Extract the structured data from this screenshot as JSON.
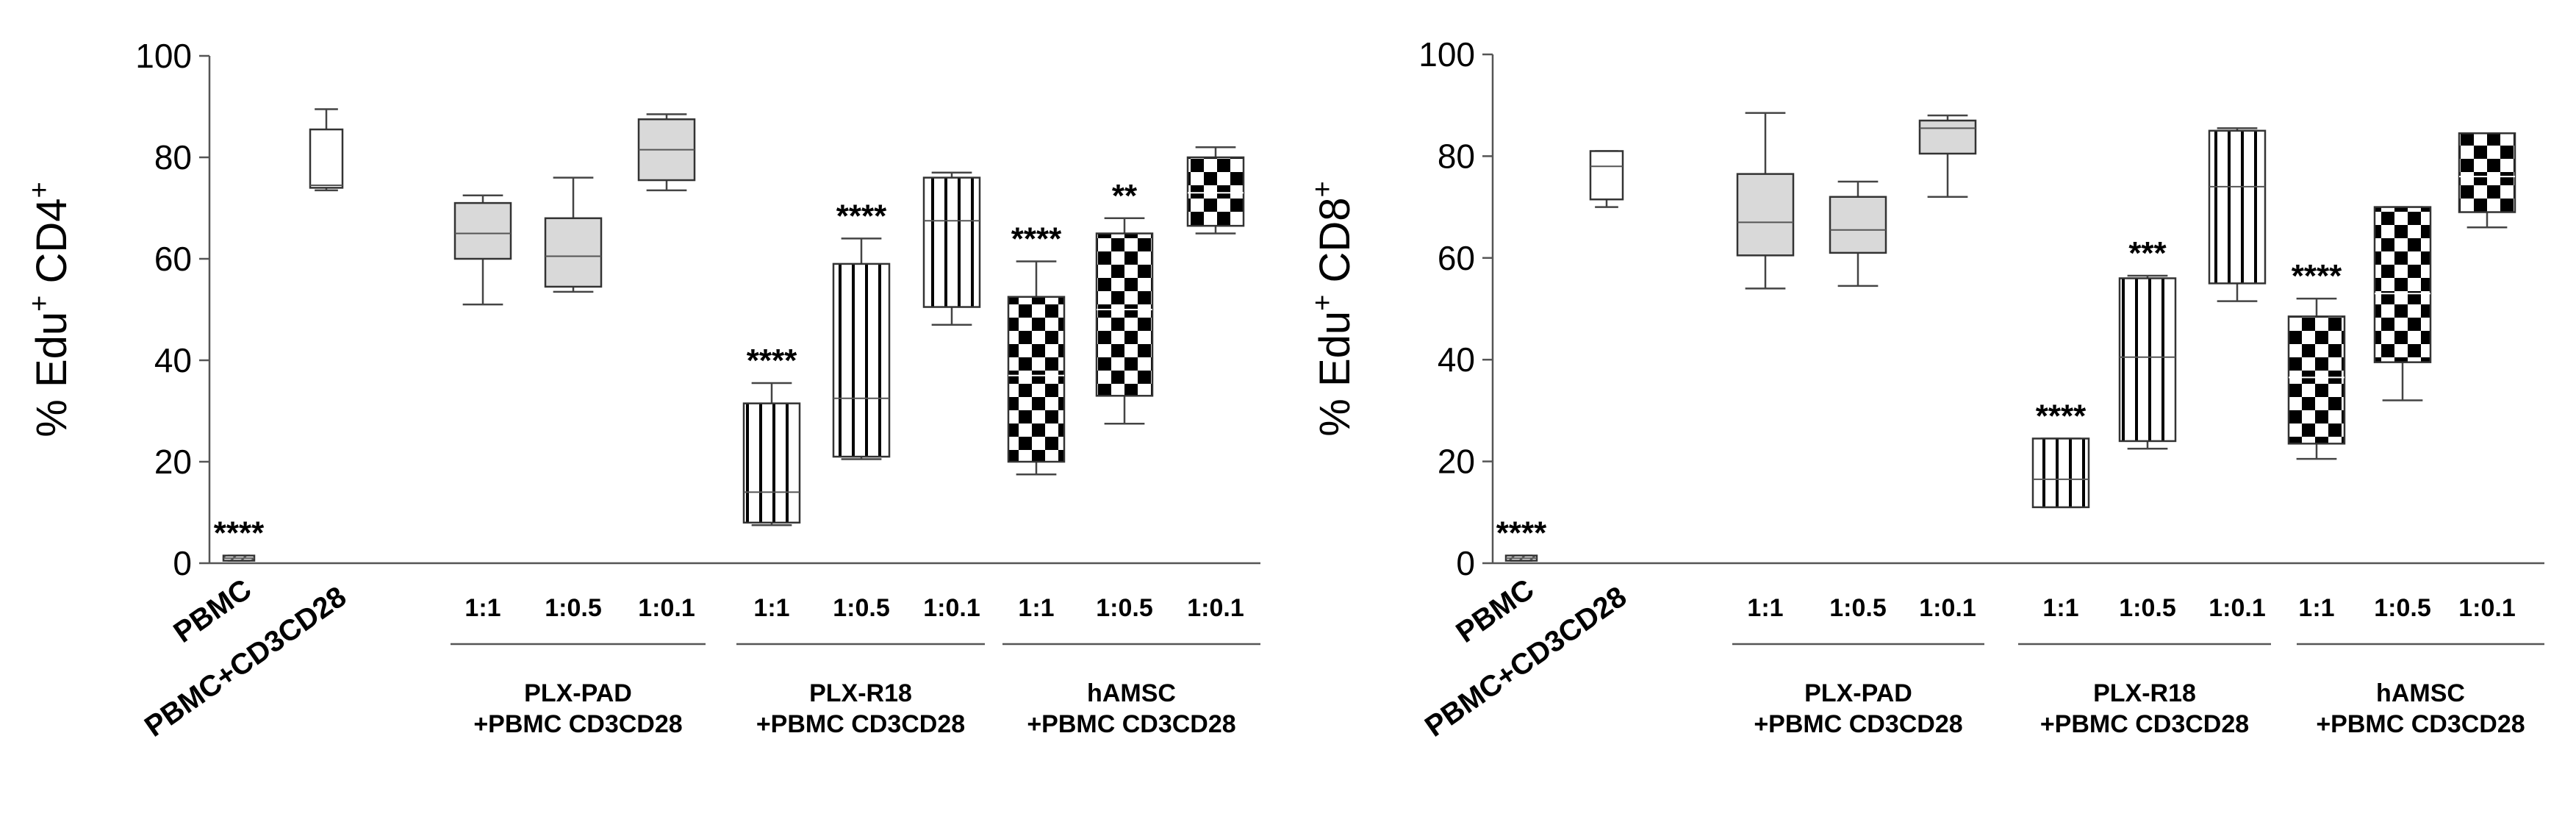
{
  "chart_data": [
    {
      "type": "box",
      "panel": "left",
      "ylabel": {
        "main": "% Edu",
        "sup1": "+",
        "cell": " CD4",
        "sup2": "+"
      },
      "ylim": [
        0,
        100
      ],
      "yticks": [
        0,
        20,
        40,
        60,
        80,
        100
      ],
      "categories": [
        "PBMC",
        "PBMC+CD3CD28",
        "1:1",
        "1:0.5",
        "1:0.1",
        "1:1",
        "1:0.5",
        "1:0.1",
        "1:1",
        "1:0.5",
        "1:0.1"
      ],
      "groups": [
        {
          "line1": "PLX-PAD",
          "line2": "+PBMC CD3CD28",
          "from": 2,
          "to": 4
        },
        {
          "line1": "PLX-R18",
          "line2": "+PBMC CD3CD28",
          "from": 5,
          "to": 7
        },
        {
          "line1": "hAMSC",
          "line2": "+PBMC CD3CD28",
          "from": 8,
          "to": 10
        }
      ],
      "boxes": [
        {
          "label": "PBMC",
          "min": 0.5,
          "q1": 0.5,
          "median": 1,
          "q3": 1.5,
          "max": 1.5,
          "style": "hatch",
          "sig": "****"
        },
        {
          "label": "PBMC+CD3CD28",
          "min": 73.5,
          "q1": 74,
          "median": 74.5,
          "q3": 85.5,
          "max": 89.5,
          "style": "white",
          "sig": ""
        },
        {
          "label": "1:1",
          "min": 51,
          "q1": 60,
          "median": 65,
          "q3": 71,
          "max": 72.5,
          "style": "gray",
          "sig": ""
        },
        {
          "label": "1:0.5",
          "min": 53.5,
          "q1": 54.5,
          "median": 60.5,
          "q3": 68,
          "max": 76,
          "style": "gray",
          "sig": ""
        },
        {
          "label": "1:0.1",
          "min": 73.5,
          "q1": 75.5,
          "median": 81.5,
          "q3": 87.5,
          "max": 88.5,
          "style": "gray",
          "sig": ""
        },
        {
          "label": "1:1",
          "min": 7.5,
          "q1": 8,
          "median": 14,
          "q3": 31.5,
          "max": 35.5,
          "style": "vstripe",
          "sig": "****"
        },
        {
          "label": "1:0.5",
          "min": 20.5,
          "q1": 21,
          "median": 32.5,
          "q3": 59,
          "max": 64,
          "style": "vstripe",
          "sig": "****"
        },
        {
          "label": "1:0.1",
          "min": 47,
          "q1": 50.5,
          "median": 67.5,
          "q3": 76,
          "max": 77,
          "style": "vstripe",
          "sig": ""
        },
        {
          "label": "1:1",
          "min": 17.5,
          "q1": 20,
          "median": 37,
          "q3": 52.5,
          "max": 59.5,
          "style": "checker",
          "sig": "****"
        },
        {
          "label": "1:0.5",
          "min": 27.5,
          "q1": 33,
          "median": 50,
          "q3": 65,
          "max": 68,
          "style": "checker",
          "sig": "**"
        },
        {
          "label": "1:0.1",
          "min": 65,
          "q1": 66.5,
          "median": 73,
          "q3": 80,
          "max": 82,
          "style": "checker",
          "sig": ""
        }
      ]
    },
    {
      "type": "box",
      "panel": "right",
      "ylabel": {
        "main": "% Edu",
        "sup1": "+",
        "cell": " CD8",
        "sup2": "+"
      },
      "ylim": [
        0,
        100
      ],
      "yticks": [
        0,
        20,
        40,
        60,
        80,
        100
      ],
      "categories": [
        "PBMC",
        "PBMC+CD3CD28",
        "1:1",
        "1:0.5",
        "1:0.1",
        "1:1",
        "1:0.5",
        "1:0.1",
        "1:1",
        "1:0.5",
        "1:0.1"
      ],
      "groups": [
        {
          "line1": "PLX-PAD",
          "line2": "+PBMC CD3CD28",
          "from": 2,
          "to": 4
        },
        {
          "line1": "PLX-R18",
          "line2": "+PBMC CD3CD28",
          "from": 5,
          "to": 7
        },
        {
          "line1": "hAMSC",
          "line2": "+PBMC CD3CD28",
          "from": 8,
          "to": 10
        }
      ],
      "boxes": [
        {
          "label": "PBMC",
          "min": 0.5,
          "q1": 0.5,
          "median": 1,
          "q3": 1.5,
          "max": 1.5,
          "style": "hatch",
          "sig": "****"
        },
        {
          "label": "PBMC+CD3CD28",
          "min": 70,
          "q1": 71.5,
          "median": 78,
          "q3": 81,
          "max": 81,
          "style": "white",
          "sig": ""
        },
        {
          "label": "1:1",
          "min": 54,
          "q1": 60.5,
          "median": 67,
          "q3": 76.5,
          "max": 88.5,
          "style": "gray",
          "sig": ""
        },
        {
          "label": "1:0.5",
          "min": 54.5,
          "q1": 61,
          "median": 65.5,
          "q3": 72,
          "max": 75,
          "style": "gray",
          "sig": ""
        },
        {
          "label": "1:0.1",
          "min": 72,
          "q1": 80.5,
          "median": 85.5,
          "q3": 87,
          "max": 88,
          "style": "gray",
          "sig": ""
        },
        {
          "label": "1:1",
          "min": 11,
          "q1": 11,
          "median": 16.5,
          "q3": 24.5,
          "max": 24.5,
          "style": "vstripe",
          "sig": "****"
        },
        {
          "label": "1:0.5",
          "min": 22.5,
          "q1": 24,
          "median": 40.5,
          "q3": 56,
          "max": 56.5,
          "style": "vstripe",
          "sig": "***"
        },
        {
          "label": "1:0.1",
          "min": 51.5,
          "q1": 55,
          "median": 74,
          "q3": 85,
          "max": 85.5,
          "style": "vstripe",
          "sig": ""
        },
        {
          "label": "1:1",
          "min": 20.5,
          "q1": 23.5,
          "median": 36.5,
          "q3": 48.5,
          "max": 52,
          "style": "checker",
          "sig": "****"
        },
        {
          "label": "1:0.5",
          "min": 32,
          "q1": 39.5,
          "median": 53,
          "q3": 70,
          "max": 70,
          "style": "checker",
          "sig": ""
        },
        {
          "label": "1:0.1",
          "min": 66,
          "q1": 69,
          "median": 76,
          "q3": 84.5,
          "max": 84.5,
          "style": "checker",
          "sig": ""
        }
      ]
    }
  ]
}
